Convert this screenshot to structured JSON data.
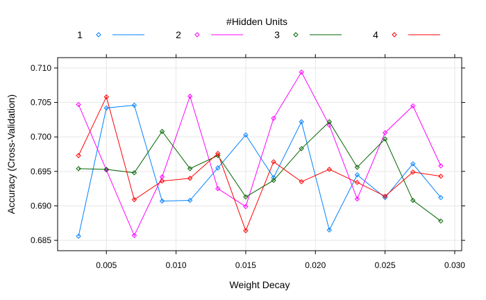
{
  "chart_data": {
    "type": "line",
    "legend_title": "#Hidden Units",
    "legend_position": "top",
    "xlabel": "Weight Decay",
    "ylabel": "Accuracy (Cross-Validation)",
    "xlim": [
      0.0015,
      0.0305
    ],
    "ylim": [
      0.6835,
      0.7115
    ],
    "xticks": [
      0.005,
      0.01,
      0.015,
      0.02,
      0.025,
      0.03
    ],
    "xtick_labels": [
      "0.005",
      "0.010",
      "0.015",
      "0.020",
      "0.025",
      "0.030"
    ],
    "yticks": [
      0.685,
      0.69,
      0.695,
      0.7,
      0.705,
      0.71
    ],
    "ytick_labels": [
      "0.685",
      "0.690",
      "0.695",
      "0.700",
      "0.705",
      "0.710"
    ],
    "grid": true,
    "x": [
      0.003,
      0.005,
      0.007,
      0.009,
      0.011,
      0.013,
      0.015,
      0.017,
      0.019,
      0.021,
      0.023,
      0.025,
      0.027,
      0.029
    ],
    "series": [
      {
        "name": "1",
        "color": "#0080ff",
        "values": [
          0.6856,
          0.7042,
          0.7046,
          0.6907,
          0.6908,
          0.6955,
          0.7003,
          0.6941,
          0.7022,
          0.6865,
          0.6945,
          0.6912,
          0.6961,
          0.6912
        ]
      },
      {
        "name": "2",
        "color": "#ff00ff",
        "values": [
          0.7047,
          0.6952,
          0.6857,
          0.6942,
          0.7059,
          0.6925,
          0.6899,
          0.7027,
          0.7094,
          0.7017,
          0.691,
          0.7006,
          0.7045,
          0.6958
        ]
      },
      {
        "name": "3",
        "color": "#006400",
        "values": [
          0.6954,
          0.6953,
          0.6948,
          0.7008,
          0.6954,
          0.6973,
          0.6913,
          0.6937,
          0.6983,
          0.7022,
          0.6956,
          0.6997,
          0.6908,
          0.6878
        ]
      },
      {
        "name": "4",
        "color": "#ff0000",
        "values": [
          0.6973,
          0.7058,
          0.6909,
          0.6936,
          0.694,
          0.6976,
          0.6864,
          0.6964,
          0.6935,
          0.6953,
          0.6934,
          0.6914,
          0.6949,
          0.6943
        ]
      }
    ]
  }
}
